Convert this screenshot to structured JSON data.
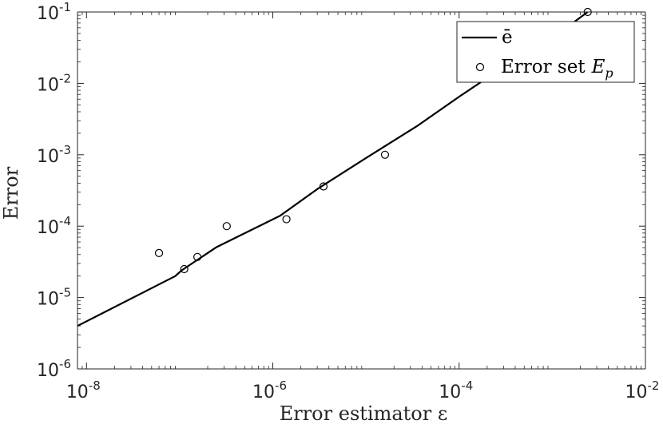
{
  "chart_data": {
    "type": "scatter",
    "xscale": "log",
    "yscale": "log",
    "xlim": [
      8e-09,
      0.01
    ],
    "ylim": [
      1e-06,
      0.1
    ],
    "xlabel": "Error estimator ε",
    "ylabel": "Error",
    "grid": false,
    "legend_position": "top-right",
    "x_ticks": [
      {
        "base": "10",
        "exp": "-8"
      },
      {
        "base": "10",
        "exp": "-6"
      },
      {
        "base": "10",
        "exp": "-4"
      },
      {
        "base": "10",
        "exp": "-2"
      }
    ],
    "y_ticks": [
      {
        "base": "10",
        "exp": "-6"
      },
      {
        "base": "10",
        "exp": "-5"
      },
      {
        "base": "10",
        "exp": "-4"
      },
      {
        "base": "10",
        "exp": "-3"
      },
      {
        "base": "10",
        "exp": "-2"
      },
      {
        "base": "10",
        "exp": "-1"
      }
    ],
    "series": [
      {
        "name": "ē",
        "style": "line",
        "color": "#000000",
        "x": [
          8e-09,
          9e-08,
          1.05e-07,
          2.5e-07,
          1.2e-06,
          3e-06,
          1e-05,
          3.5e-05,
          0.0001,
          0.0003,
          0.001,
          0.0024
        ],
        "y": [
          4e-06,
          2e-05,
          2.4e-05,
          5.1e-05,
          0.00014,
          0.00033,
          0.0009,
          0.0025,
          0.0065,
          0.017,
          0.043,
          0.1
        ]
      },
      {
        "name": "Error set",
        "name_math": "Ep",
        "style": "marker",
        "marker": "circle",
        "color": "#000000",
        "x": [
          6e-08,
          1.12e-07,
          1.55e-07,
          3.2e-07,
          1.4e-06,
          3.5e-06,
          1.6e-05,
          0.0024
        ],
        "y": [
          4.2e-05,
          2.5e-05,
          3.7e-05,
          0.0001,
          0.000125,
          0.00036,
          0.001,
          0.1
        ]
      }
    ]
  }
}
